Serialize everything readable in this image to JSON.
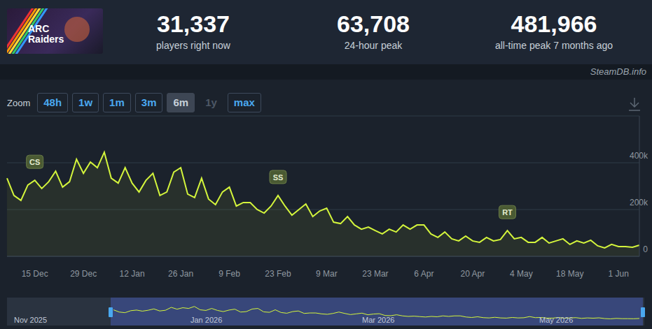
{
  "header": {
    "logo_text": "ARC Raiders",
    "stats": [
      {
        "value": "31,337",
        "label": "players right now"
      },
      {
        "value": "63,708",
        "label": "24-hour peak"
      },
      {
        "value": "481,966",
        "label": "all-time peak 7 months ago"
      }
    ],
    "watermark": "SteamDB.info"
  },
  "zoom": {
    "label": "Zoom",
    "options": [
      "48h",
      "1w",
      "1m",
      "3m",
      "6m",
      "1y",
      "max"
    ],
    "active": "6m",
    "disabled": [
      "1y"
    ]
  },
  "chart_data": {
    "type": "area",
    "color": "#d4f53c",
    "grid": true,
    "categories": [
      null,
      null,
      null,
      null,
      "15 Dec",
      null,
      null,
      null,
      null,
      null,
      null,
      "29 Dec",
      null,
      null,
      null,
      null,
      null,
      null,
      "12 Jan",
      null,
      null,
      null,
      null,
      null,
      null,
      "26 Jan",
      null,
      null,
      null,
      null,
      null,
      null,
      "9 Feb",
      null,
      null,
      null,
      null,
      null,
      null,
      "23 Feb",
      null,
      null,
      null,
      null,
      null,
      null,
      "9 Mar",
      null,
      null,
      null,
      null,
      null,
      null,
      "23 Mar",
      null,
      null,
      null,
      null,
      null,
      null,
      "6 Apr",
      null,
      null,
      null,
      null,
      null,
      null,
      "20 Apr",
      null,
      null,
      null,
      null,
      null,
      null,
      "4 May",
      null,
      null,
      null,
      null,
      null,
      null,
      "18 May",
      null,
      null,
      null,
      null,
      null,
      null,
      "1 Jun",
      null,
      null,
      null
    ],
    "values": [
      334000,
      260000,
      239000,
      305000,
      325000,
      290000,
      319000,
      364000,
      296000,
      319000,
      415000,
      355000,
      403000,
      379000,
      445000,
      334000,
      313000,
      379000,
      313000,
      275000,
      325000,
      355000,
      260000,
      275000,
      360000,
      379000,
      266000,
      251000,
      334000,
      245000,
      221000,
      275000,
      296000,
      215000,
      230000,
      230000,
      200000,
      185000,
      215000,
      260000,
      215000,
      176000,
      200000,
      224000,
      170000,
      194000,
      206000,
      146000,
      140000,
      170000,
      134000,
      116000,
      125000,
      110000,
      96000,
      116000,
      104000,
      134000,
      116000,
      134000,
      134000,
      96000,
      81000,
      104000,
      75000,
      66000,
      87000,
      66000,
      60000,
      81000,
      66000,
      72000,
      110000,
      75000,
      81000,
      60000,
      60000,
      81000,
      57000,
      66000,
      75000,
      51000,
      66000,
      57000,
      69000,
      45000,
      36000,
      51000,
      42000,
      42000,
      39000,
      48000
    ],
    "ylim": [
      0,
      600000
    ],
    "yticks": [
      0,
      {
        "value": 200000,
        "label": "200k"
      },
      {
        "value": 400000,
        "label": "400k"
      }
    ],
    "annotations": [
      {
        "text": "CS",
        "index": 4
      },
      {
        "text": "SS",
        "index": 39
      },
      {
        "text": "RT",
        "index": 72
      }
    ]
  },
  "navigator": {
    "labels": [
      "Nov 2025",
      "Jan 2026",
      "Mar 2026",
      "May 2026"
    ]
  }
}
